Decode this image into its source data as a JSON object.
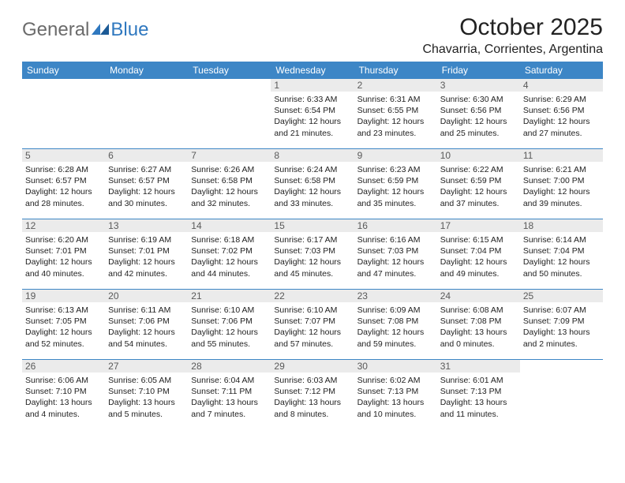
{
  "logo": {
    "general": "General",
    "blue": "Blue"
  },
  "title": "October 2025",
  "location": "Chavarria, Corrientes, Argentina",
  "colors": {
    "header_bg": "#3d86c6",
    "daynum_bg": "#ebebeb",
    "logo_gray": "#6b6b6b",
    "logo_blue": "#2f78bf"
  },
  "day_headers": [
    "Sunday",
    "Monday",
    "Tuesday",
    "Wednesday",
    "Thursday",
    "Friday",
    "Saturday"
  ],
  "weeks": [
    [
      {
        "empty": true
      },
      {
        "empty": true
      },
      {
        "empty": true
      },
      {
        "num": "1",
        "sunrise": "6:33 AM",
        "sunset": "6:54 PM",
        "daylight": "12 hours and 21 minutes."
      },
      {
        "num": "2",
        "sunrise": "6:31 AM",
        "sunset": "6:55 PM",
        "daylight": "12 hours and 23 minutes."
      },
      {
        "num": "3",
        "sunrise": "6:30 AM",
        "sunset": "6:56 PM",
        "daylight": "12 hours and 25 minutes."
      },
      {
        "num": "4",
        "sunrise": "6:29 AM",
        "sunset": "6:56 PM",
        "daylight": "12 hours and 27 minutes."
      }
    ],
    [
      {
        "num": "5",
        "sunrise": "6:28 AM",
        "sunset": "6:57 PM",
        "daylight": "12 hours and 28 minutes."
      },
      {
        "num": "6",
        "sunrise": "6:27 AM",
        "sunset": "6:57 PM",
        "daylight": "12 hours and 30 minutes."
      },
      {
        "num": "7",
        "sunrise": "6:26 AM",
        "sunset": "6:58 PM",
        "daylight": "12 hours and 32 minutes."
      },
      {
        "num": "8",
        "sunrise": "6:24 AM",
        "sunset": "6:58 PM",
        "daylight": "12 hours and 33 minutes."
      },
      {
        "num": "9",
        "sunrise": "6:23 AM",
        "sunset": "6:59 PM",
        "daylight": "12 hours and 35 minutes."
      },
      {
        "num": "10",
        "sunrise": "6:22 AM",
        "sunset": "6:59 PM",
        "daylight": "12 hours and 37 minutes."
      },
      {
        "num": "11",
        "sunrise": "6:21 AM",
        "sunset": "7:00 PM",
        "daylight": "12 hours and 39 minutes."
      }
    ],
    [
      {
        "num": "12",
        "sunrise": "6:20 AM",
        "sunset": "7:01 PM",
        "daylight": "12 hours and 40 minutes."
      },
      {
        "num": "13",
        "sunrise": "6:19 AM",
        "sunset": "7:01 PM",
        "daylight": "12 hours and 42 minutes."
      },
      {
        "num": "14",
        "sunrise": "6:18 AM",
        "sunset": "7:02 PM",
        "daylight": "12 hours and 44 minutes."
      },
      {
        "num": "15",
        "sunrise": "6:17 AM",
        "sunset": "7:03 PM",
        "daylight": "12 hours and 45 minutes."
      },
      {
        "num": "16",
        "sunrise": "6:16 AM",
        "sunset": "7:03 PM",
        "daylight": "12 hours and 47 minutes."
      },
      {
        "num": "17",
        "sunrise": "6:15 AM",
        "sunset": "7:04 PM",
        "daylight": "12 hours and 49 minutes."
      },
      {
        "num": "18",
        "sunrise": "6:14 AM",
        "sunset": "7:04 PM",
        "daylight": "12 hours and 50 minutes."
      }
    ],
    [
      {
        "num": "19",
        "sunrise": "6:13 AM",
        "sunset": "7:05 PM",
        "daylight": "12 hours and 52 minutes."
      },
      {
        "num": "20",
        "sunrise": "6:11 AM",
        "sunset": "7:06 PM",
        "daylight": "12 hours and 54 minutes."
      },
      {
        "num": "21",
        "sunrise": "6:10 AM",
        "sunset": "7:06 PM",
        "daylight": "12 hours and 55 minutes."
      },
      {
        "num": "22",
        "sunrise": "6:10 AM",
        "sunset": "7:07 PM",
        "daylight": "12 hours and 57 minutes."
      },
      {
        "num": "23",
        "sunrise": "6:09 AM",
        "sunset": "7:08 PM",
        "daylight": "12 hours and 59 minutes."
      },
      {
        "num": "24",
        "sunrise": "6:08 AM",
        "sunset": "7:08 PM",
        "daylight": "13 hours and 0 minutes."
      },
      {
        "num": "25",
        "sunrise": "6:07 AM",
        "sunset": "7:09 PM",
        "daylight": "13 hours and 2 minutes."
      }
    ],
    [
      {
        "num": "26",
        "sunrise": "6:06 AM",
        "sunset": "7:10 PM",
        "daylight": "13 hours and 4 minutes."
      },
      {
        "num": "27",
        "sunrise": "6:05 AM",
        "sunset": "7:10 PM",
        "daylight": "13 hours and 5 minutes."
      },
      {
        "num": "28",
        "sunrise": "6:04 AM",
        "sunset": "7:11 PM",
        "daylight": "13 hours and 7 minutes."
      },
      {
        "num": "29",
        "sunrise": "6:03 AM",
        "sunset": "7:12 PM",
        "daylight": "13 hours and 8 minutes."
      },
      {
        "num": "30",
        "sunrise": "6:02 AM",
        "sunset": "7:13 PM",
        "daylight": "13 hours and 10 minutes."
      },
      {
        "num": "31",
        "sunrise": "6:01 AM",
        "sunset": "7:13 PM",
        "daylight": "13 hours and 11 minutes."
      },
      {
        "empty": true
      }
    ]
  ],
  "labels": {
    "sunrise": "Sunrise:",
    "sunset": "Sunset:",
    "daylight": "Daylight:"
  }
}
